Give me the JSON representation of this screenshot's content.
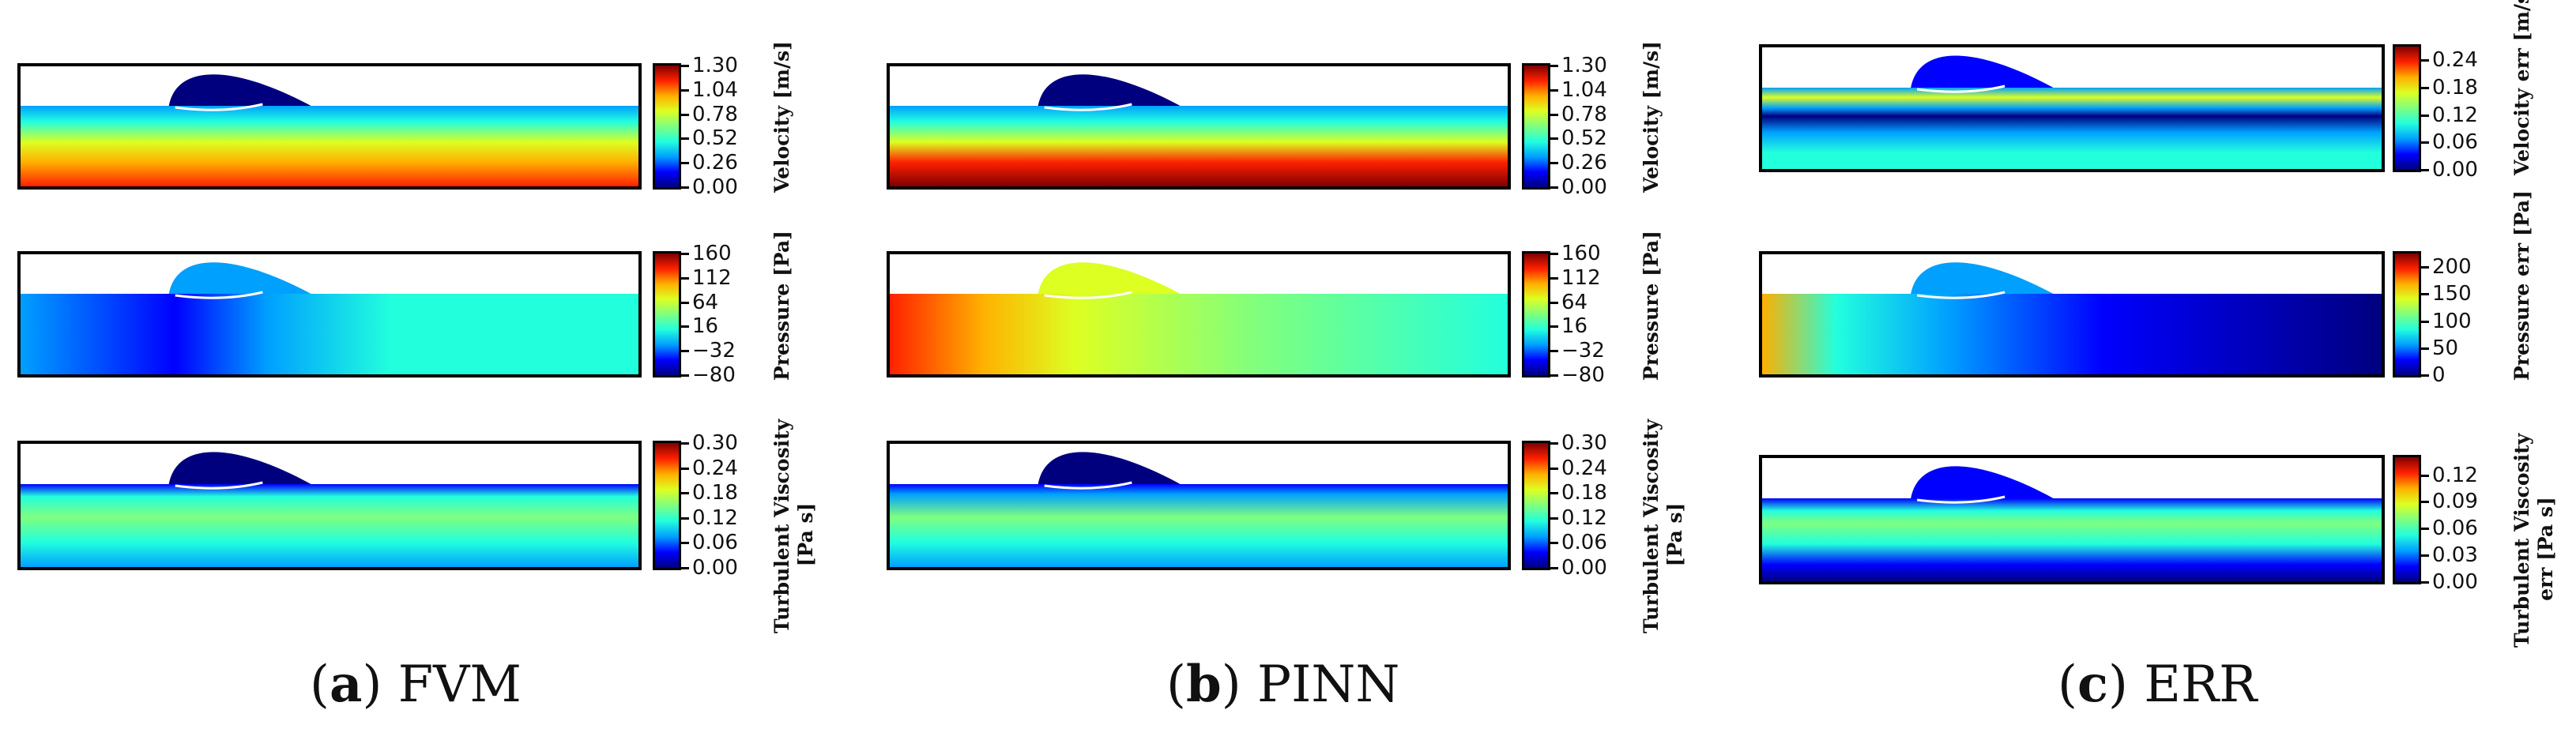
{
  "chart_data": {
    "type": "heatmap",
    "panels": [
      {
        "column": "a",
        "caption_letter": "a",
        "caption_text": "FVM",
        "rows": [
          {
            "quantity": "Velocity",
            "colorbar_label": [
              "Velocity [m/s]"
            ],
            "ticks": [
              "0.00",
              "0.26",
              "0.52",
              "0.78",
              "1.04",
              "1.30"
            ],
            "range": [
              0,
              1.3
            ]
          },
          {
            "quantity": "Pressure",
            "colorbar_label": [
              "Pressure [Pa]"
            ],
            "ticks": [
              "−80",
              "−32",
              "16",
              "64",
              "112",
              "160"
            ],
            "range": [
              -80,
              160
            ]
          },
          {
            "quantity": "Turbulent Viscosity",
            "colorbar_label": [
              "Turbulent Viscosity",
              "[Pa s]"
            ],
            "ticks": [
              "0.00",
              "0.06",
              "0.12",
              "0.18",
              "0.24",
              "0.30"
            ],
            "range": [
              0,
              0.3
            ]
          }
        ]
      },
      {
        "column": "b",
        "caption_letter": "b",
        "caption_text": "PINN",
        "rows": [
          {
            "quantity": "Velocity",
            "colorbar_label": [
              "Velocity [m/s]"
            ],
            "ticks": [
              "0.00",
              "0.26",
              "0.52",
              "0.78",
              "1.04",
              "1.30"
            ],
            "range": [
              0,
              1.3
            ]
          },
          {
            "quantity": "Pressure",
            "colorbar_label": [
              "Pressure [Pa]"
            ],
            "ticks": [
              "−80",
              "−32",
              "16",
              "64",
              "112",
              "160"
            ],
            "range": [
              -80,
              160
            ]
          },
          {
            "quantity": "Turbulent Viscosity",
            "colorbar_label": [
              "Turbulent Viscosity",
              "[Pa s]"
            ],
            "ticks": [
              "0.00",
              "0.06",
              "0.12",
              "0.18",
              "0.24",
              "0.30"
            ],
            "range": [
              0,
              0.3
            ]
          }
        ]
      },
      {
        "column": "c",
        "caption_letter": "c",
        "caption_text": "ERR",
        "rows": [
          {
            "quantity": "Velocity err",
            "colorbar_label": [
              "Velocity err [m/s]"
            ],
            "ticks": [
              "0.00",
              "0.06",
              "0.12",
              "0.18",
              "0.24"
            ],
            "range": [
              0,
              0.27
            ]
          },
          {
            "quantity": "Pressure err",
            "colorbar_label": [
              "Pressure err [Pa]"
            ],
            "ticks": [
              "0",
              "50",
              "100",
              "150",
              "200"
            ],
            "range": [
              0,
              225
            ]
          },
          {
            "quantity": "Turbulent Viscosity err",
            "colorbar_label": [
              "Turbulent Viscosity",
              "err [Pa s]"
            ],
            "ticks": [
              "0.00",
              "0.03",
              "0.06",
              "0.09",
              "0.12"
            ],
            "range": [
              0,
              0.14
            ]
          }
        ]
      }
    ],
    "colormap": "jet",
    "colormap_stops": [
      "#00007f",
      "#0000ff",
      "#00a0ff",
      "#22ffdd",
      "#7fff7f",
      "#ddff22",
      "#ffb000",
      "#ff2000",
      "#7f0000"
    ]
  }
}
